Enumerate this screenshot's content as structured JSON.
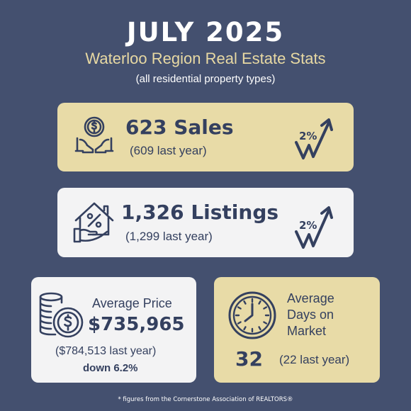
{
  "header": {
    "title": "JULY 2025",
    "subtitle": "Waterloo Region Real Estate Stats",
    "note": "(all residential property types)"
  },
  "sales": {
    "headline": "623 Sales",
    "last_year": "(609 last year)",
    "change": "2%",
    "icon": "hands-coin-icon",
    "trend_icon": "trend-up-arrow-icon"
  },
  "listings": {
    "headline": "1,326 Listings",
    "last_year": "(1,299 last year)",
    "change": "2%",
    "icon": "house-percent-icon",
    "trend_icon": "trend-up-arrow-icon"
  },
  "price": {
    "label": "Average Price",
    "value": "$735,965",
    "last_year": "($784,513 last year)",
    "change": "down 6.2%",
    "icon": "coin-stack-icon"
  },
  "days": {
    "label_line1": "Average",
    "label_line2": "Days on",
    "label_line3": "Market",
    "value": "32",
    "last_year": "(22 last year)",
    "icon": "clock-icon"
  },
  "footer": {
    "text": "* figures from the Cornerstone Association of REALTORS®"
  },
  "colors": {
    "background": "#44506f",
    "gold_card": "#e8dba7",
    "white_card": "#f3f3f4",
    "ink": "#34405f",
    "subtitle": "#e8d9a3"
  }
}
